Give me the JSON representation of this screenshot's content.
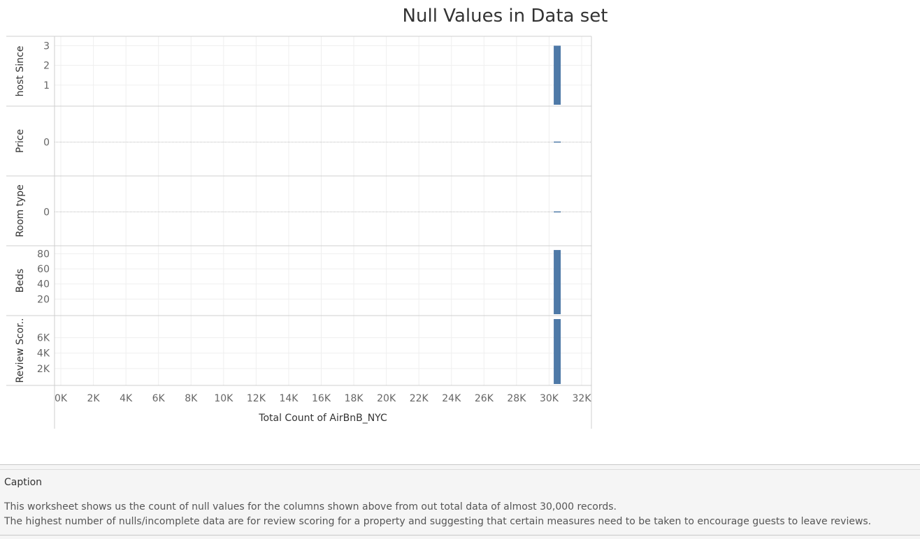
{
  "chart_data": {
    "type": "bar",
    "title": "Null Values in Data set",
    "xlabel": "Total Count of AirBnB_NYC",
    "x_ticks": [
      "0K",
      "2K",
      "4K",
      "6K",
      "8K",
      "10K",
      "12K",
      "14K",
      "16K",
      "18K",
      "20K",
      "22K",
      "24K",
      "26K",
      "28K",
      "30K",
      "32K"
    ],
    "xlim": [
      0,
      32500
    ],
    "grid": true,
    "color": "#4e79a7",
    "panels": [
      {
        "label": "host Since",
        "ticks": [
          "3",
          "2",
          "1"
        ],
        "tick_values": [
          3,
          2,
          1
        ],
        "ylim": [
          0,
          3.3
        ],
        "value": 3,
        "x_position": 30500
      },
      {
        "label": "Price",
        "ticks": [
          "0"
        ],
        "tick_values": [
          0
        ],
        "ylim": [
          -1,
          1
        ],
        "value": 0,
        "x_position": 30500
      },
      {
        "label": "Room type",
        "ticks": [
          "0"
        ],
        "tick_values": [
          0
        ],
        "ylim": [
          -1,
          1
        ],
        "value": 0,
        "x_position": 30500
      },
      {
        "label": "Beds",
        "ticks": [
          "80",
          "60",
          "40",
          "20"
        ],
        "tick_values": [
          80,
          60,
          40,
          20
        ],
        "ylim": [
          0,
          86
        ],
        "value": 85,
        "x_position": 30500
      },
      {
        "label": "Review Scor..",
        "ticks": [
          "6K",
          "4K",
          "2K"
        ],
        "tick_values": [
          6000,
          4000,
          2000
        ],
        "ylim": [
          0,
          8400
        ],
        "value": 8400,
        "x_position": 30500
      }
    ]
  },
  "caption": {
    "title": "Caption",
    "lines": [
      "This worksheet shows us the count of null values for the columns shown above from out total data of almost 30,000 records.",
      "The highest number of nulls/incomplete data are for review scoring for a property and suggesting that certain measures need to be taken to encourage guests to leave reviews."
    ]
  }
}
